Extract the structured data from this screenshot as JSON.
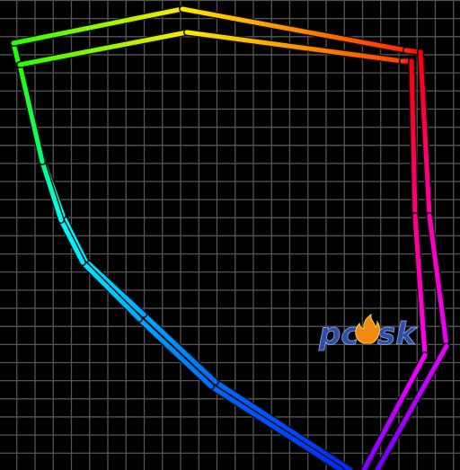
{
  "logo": {
    "left": "pc",
    "right": "sk"
  }
}
